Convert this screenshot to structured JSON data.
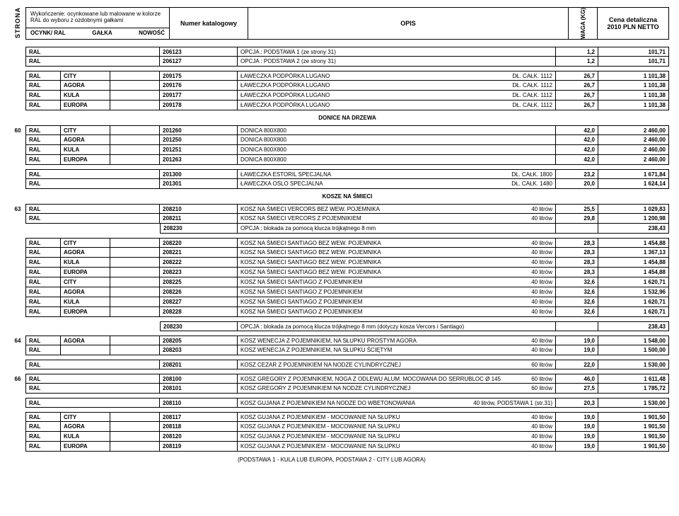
{
  "header": {
    "side_label": "STRONA",
    "finish_title": "Wykończenie: ocynkowane lub malowane w kolorze RAL do wyboru z ozdobnymi gałkami",
    "finish_cols": [
      "OCYNK/ RAL",
      "GAŁKA",
      "NOWOŚĆ"
    ],
    "katalog": "Numer katalogowy",
    "opis": "OPIS",
    "waga": "WAGA (KG)",
    "cena1": "Cena detaliczna",
    "cena2": "2010 PLN NETTO"
  },
  "sections": [
    {
      "type": "block",
      "hasC2": false,
      "pageIdx": "",
      "rows": [
        {
          "c1": "RAL",
          "cat": "206123",
          "opis": "OPCJA : PODSTAWA 1 (ze strony 31)",
          "wt": "1,2",
          "pr": "101,71"
        },
        {
          "c1": "RAL",
          "cat": "206127",
          "opis": "OPCJA : PODSTAWA 2 (ze strony 31)",
          "wt": "1,2",
          "pr": "101,71"
        }
      ]
    },
    {
      "type": "block",
      "hasC2": true,
      "rows": [
        {
          "c1": "RAL",
          "c2": "CITY",
          "cat": "209175",
          "opis": "ŁAWECZKA PODPÓRKA LUGANO",
          "ex": "DŁ. CAŁK. 1112",
          "wt": "26,7",
          "pr": "1 101,38"
        },
        {
          "c1": "RAL",
          "c2": "AGORA",
          "cat": "209176",
          "opis": "ŁAWECZKA PODPÓRKA LUGANO",
          "ex": "DŁ. CAŁK. 1112",
          "wt": "26,7",
          "pr": "1 101,38"
        },
        {
          "c1": "RAL",
          "c2": "KULA",
          "cat": "209177",
          "opis": "ŁAWECZKA PODPÓRKA LUGANO",
          "ex": "DŁ. CAŁK. 1112",
          "wt": "26,7",
          "pr": "1 101,38"
        },
        {
          "c1": "RAL",
          "c2": "EUROPA",
          "cat": "209178",
          "opis": "ŁAWECZKA PODPÓRKA LUGANO",
          "ex": "DŁ. CAŁK. 1112",
          "wt": "26,7",
          "pr": "1 101,38"
        }
      ]
    },
    {
      "type": "title",
      "text": "DONICE NA DRZEWA"
    },
    {
      "type": "block",
      "hasC2": true,
      "pageIdx": "60",
      "rows": [
        {
          "c1": "RAL",
          "c2": "CITY",
          "cat": "201260",
          "opis": "DONICA 800X800",
          "wt": "42,0",
          "pr": "2 460,00"
        },
        {
          "c1": "RAL",
          "c2": "AGORA",
          "cat": "201250",
          "opis": "DONICA 800X800",
          "wt": "42,0",
          "pr": "2 460,00"
        },
        {
          "c1": "RAL",
          "c2": "KULA",
          "cat": "201251",
          "opis": "DONICA 800X800",
          "wt": "42,0",
          "pr": "2 460,00"
        },
        {
          "c1": "RAL",
          "c2": "EUROPA",
          "cat": "201263",
          "opis": "DONICA 800X800",
          "wt": "42,0",
          "pr": "2 460,00"
        }
      ]
    },
    {
      "type": "block",
      "hasC2": false,
      "rows": [
        {
          "c1": "RAL",
          "cat": "201300",
          "opis": "ŁAWECZKA ESTORIL SPECJALNA",
          "ex": "DŁ. CAŁK. 1800",
          "wt": "23,2",
          "pr": "1 671,84"
        },
        {
          "c1": "RAL",
          "cat": "201301",
          "opis": "ŁAWECZKA OSLO SPECJALNA",
          "ex": "DŁ. CAŁK. 1480",
          "wt": "20,0",
          "pr": "1 624,14"
        }
      ]
    },
    {
      "type": "title",
      "text": "KOSZE NA ŚMIECI"
    },
    {
      "type": "block",
      "hasC2": false,
      "pageIdx": "63",
      "rows": [
        {
          "c1": "RAL",
          "cat": "208210",
          "opis": "KOSZ NA ŚMIECI VERCORS BEZ WEW. POJEMNIKA",
          "ex": "40 litrów",
          "wt": "25,5",
          "pr": "1 029,83"
        },
        {
          "c1": "RAL",
          "cat": "208211",
          "opis": "KOSZ NA ŚMIECI VERCORS Z POJEMNIKIEM",
          "ex": "40 litrów",
          "wt": "29,8",
          "pr": "1 200,98"
        },
        {
          "soloCat": true,
          "cat": "208230",
          "opis": "OPCJA : blokada za pomocą klucza trójkątnego 8 mm",
          "pr": "238,43"
        }
      ]
    },
    {
      "type": "block",
      "hasC2": true,
      "rows": [
        {
          "c1": "RAL",
          "c2": "CITY",
          "cat": "208220",
          "opis": "KOSZ NA ŚMIECI SANTIAGO BEZ WEW. POJEMNIKA",
          "ex": "40 litrów",
          "wt": "28,3",
          "pr": "1 454,88"
        },
        {
          "c1": "RAL",
          "c2": "AGORA",
          "cat": "208221",
          "opis": "KOSZ NA ŚMIECI SANTIAGO BEZ WEW. POJEMNIKA",
          "ex": "40 litrów",
          "wt": "28,3",
          "pr": "1 367,13"
        },
        {
          "c1": "RAL",
          "c2": "KULA",
          "cat": "208222",
          "opis": "KOSZ NA ŚMIECI SANTIAGO BEZ WEW. POJEMNIKA",
          "ex": "40 litrów",
          "wt": "28,3",
          "pr": "1 454,88"
        },
        {
          "c1": "RAL",
          "c2": "EUROPA",
          "cat": "208223",
          "opis": "KOSZ NA ŚMIECI SANTIAGO BEZ WEW. POJEMNIKA",
          "ex": "40 litrów",
          "wt": "28,3",
          "pr": "1 454,88"
        },
        {
          "c1": "RAL",
          "c2": "CITY",
          "cat": "208225",
          "opis": "KOSZ NA ŚMIECI SANTIAGO Z POJEMNIKIEM",
          "ex": "40 litrów",
          "wt": "32,6",
          "pr": "1 620,71"
        },
        {
          "c1": "RAL",
          "c2": "AGORA",
          "cat": "208226",
          "opis": "KOSZ NA ŚMIECI SANTIAGO Z POJEMNIKIEM",
          "ex": "40 litrów",
          "wt": "32,6",
          "pr": "1 532,96"
        },
        {
          "c1": "RAL",
          "c2": "KULA",
          "cat": "208227",
          "opis": "KOSZ NA ŚMIECI SANTIAGO Z POJEMNIKIEM",
          "ex": "40 litrów",
          "wt": "32,6",
          "pr": "1 620,71"
        },
        {
          "c1": "RAL",
          "c2": "EUROPA",
          "cat": "208228",
          "opis": "KOSZ NA ŚMIECI SANTIAGO Z POJEMNIKIEM",
          "ex": "40 litrów",
          "wt": "32,6",
          "pr": "1 620,71"
        }
      ]
    },
    {
      "type": "block",
      "hasC2": false,
      "rows": [
        {
          "soloCat": true,
          "cat": "208230",
          "opis": "OPCJA : blokada za pomocą klucza trójkątnego 8 mm (dotyczy kosza Vercors i Santiago)",
          "pr": "238,43"
        }
      ]
    },
    {
      "type": "block",
      "hasC2": true,
      "pageIdx": "64",
      "rows": [
        {
          "c1": "RAL",
          "c2": "AGORA",
          "cat": "208205",
          "opis": "KOSZ WENECJA Z POJEMNIKIEM, NA SŁUPKU PROSTYM AGORA",
          "ex": "40 litrów",
          "wt": "19,0",
          "pr": "1 548,00"
        },
        {
          "c1": "RAL",
          "c2": "",
          "cat": "208203",
          "opis": "KOSZ WENECJA Z POJEMNIKIEM, NA SŁUPKU ŚCIĘTYM",
          "ex": "40 litrów",
          "wt": "19,0",
          "pr": "1 500,00"
        }
      ]
    },
    {
      "type": "block",
      "hasC2": false,
      "rows": [
        {
          "c1": "RAL",
          "cat": "208201",
          "opis": "KOSZ CEZAR Z POJEMNIKIEM NA NODZE CYLINDRYCZNEJ",
          "ex": "60 litrów",
          "wt": "22,0",
          "pr": "1 530,00"
        }
      ]
    },
    {
      "type": "block",
      "hasC2": false,
      "pageIdx": "66",
      "rows": [
        {
          "c1": "RAL",
          "cat": "208100",
          "opis": "KOSZ GREGORY Z POJEMNIKIEM, NOGA Z ODLEWU ALUM. MOCOWANA DO SERRUBLOC Ø 145",
          "ex": "60 litrów",
          "wt": "46,0",
          "pr": "1 611,48"
        },
        {
          "c1": "RAL",
          "cat": "208101",
          "opis": "KOSZ GREGORY Z POJEMNIKIEM NA NODZE CYLINDRYCZNEJ",
          "ex": "60 litrów",
          "wt": "27,5",
          "pr": "1 785,72"
        }
      ]
    },
    {
      "type": "block",
      "hasC2": false,
      "rows": [
        {
          "c1": "RAL",
          "cat": "208110",
          "opis": "KOSZ GUJANA Z POJEMNIKIEM NA NODZE DO WBETONOWANIA",
          "ex": "40 litrów, PODSTAWA 1 (str.31)",
          "wt": "20,3",
          "pr": "1 530,00"
        }
      ]
    },
    {
      "type": "block",
      "hasC2": true,
      "rows": [
        {
          "c1": "RAL",
          "c2": "CITY",
          "cat": "208117",
          "opis": "KOSZ GUJANA Z POJEMNIKIEM - MOCOWANIE NA SŁUPKU",
          "ex": "40 litrów",
          "wt": "19,0",
          "pr": "1 901,50"
        },
        {
          "c1": "RAL",
          "c2": "AGORA",
          "cat": "208118",
          "opis": "KOSZ GUJANA Z POJEMNIKIEM - MOCOWANIE NA SŁUPKU",
          "ex": "40 litrów",
          "wt": "19,0",
          "pr": "1 901,50"
        },
        {
          "c1": "RAL",
          "c2": "KULA",
          "cat": "208120",
          "opis": "KOSZ GUJANA Z POJEMNIKIEM - MOCOWANIE NA SŁUPKU",
          "ex": "40 litrów",
          "wt": "19,0",
          "pr": "1 901,50"
        },
        {
          "c1": "RAL",
          "c2": "EUROPA",
          "cat": "208119",
          "opis": "KOSZ GUJANA Z POJEMNIKIEM - MOCOWANIE NA SŁUPKU",
          "ex": "40 litrów",
          "wt": "19,0",
          "pr": "1 901,50"
        }
      ]
    },
    {
      "type": "note",
      "text": "(PODSTAWA 1 - KULA LUB EUROPA, PODSTAWA 2 - CITY LUB AGORA)"
    }
  ]
}
